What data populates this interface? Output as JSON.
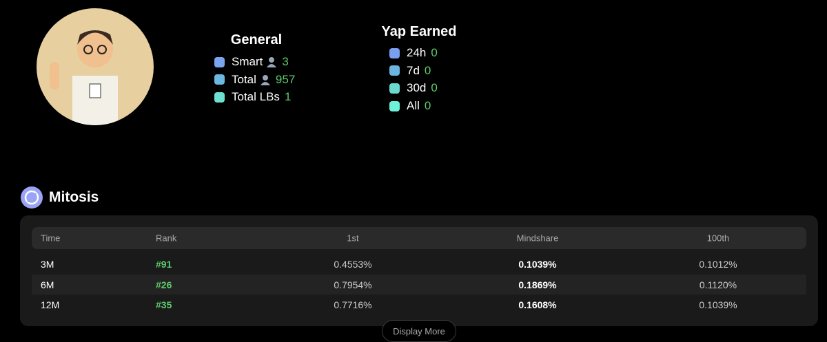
{
  "profile": {
    "general": {
      "title": "General",
      "items": [
        {
          "label": "Smart",
          "value": 3,
          "color": "#7ba4f0",
          "icon": true
        },
        {
          "label": "Total",
          "value": 957,
          "color": "#6cb8e0",
          "icon": true
        },
        {
          "label": "Total LBs",
          "value": 1,
          "color": "#6ee0d0",
          "icon": false
        }
      ]
    },
    "yap": {
      "title": "Yap Earned",
      "items": [
        {
          "label": "24h",
          "value": 0,
          "color": "#7b9ff0"
        },
        {
          "label": "7d",
          "value": 0,
          "color": "#6bb5e0"
        },
        {
          "label": "30d",
          "value": 0,
          "color": "#6ad9cf"
        },
        {
          "label": "All",
          "value": 0,
          "color": "#6ef0d9"
        }
      ]
    }
  },
  "section": {
    "title": "Mitosis",
    "table": {
      "headers": [
        "Time",
        "Rank",
        "1st",
        "Mindshare",
        "100th"
      ],
      "rows": [
        [
          "3M",
          "#91",
          "0.4553%",
          "0.1039%",
          "0.1012%"
        ],
        [
          "6M",
          "#26",
          "0.7954%",
          "0.1869%",
          "0.1120%"
        ],
        [
          "12M",
          "#35",
          "0.7716%",
          "0.1608%",
          "0.1039%"
        ]
      ]
    },
    "button": "Display More"
  }
}
